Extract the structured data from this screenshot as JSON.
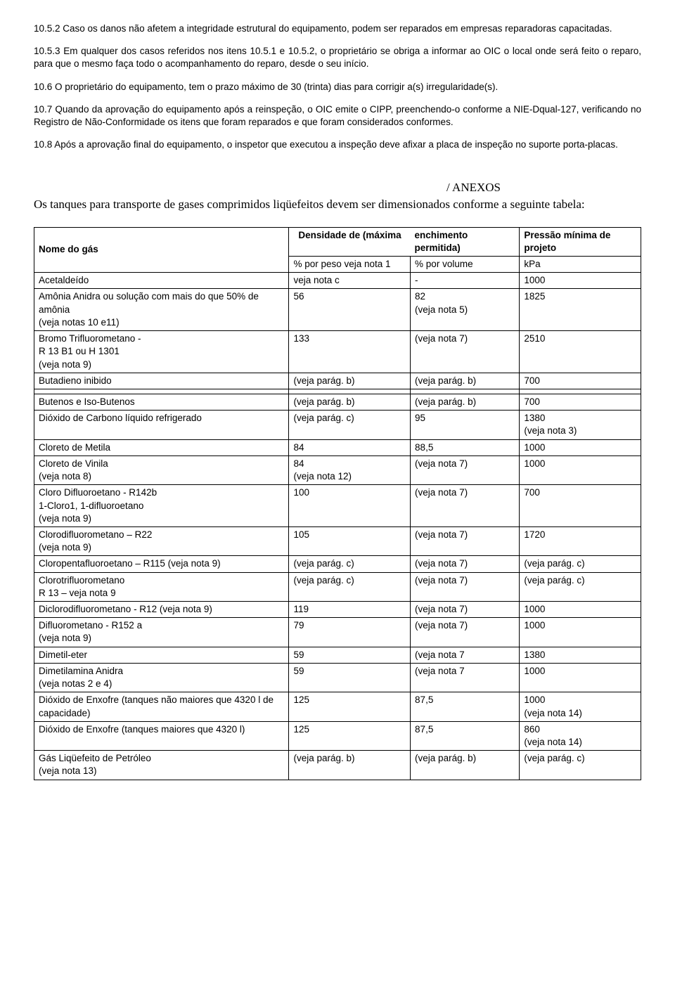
{
  "paragraphs": {
    "p1": "10.5.2 Caso os danos não afetem a integridade estrutural do equipamento, podem ser reparados em empresas reparadoras capacitadas.",
    "p2": "10.5.3 Em qualquer dos casos referidos nos itens 10.5.1 e 10.5.2, o proprietário se obriga a informar ao OIC o local onde será feito o reparo, para que o mesmo faça todo o acompanhamento do reparo, desde o seu início.",
    "p3": "10.6 O proprietário do equipamento, tem o prazo máximo de 30 (trinta) dias para corrigir a(s) irregularidade(s).",
    "p4": "10.7 Quando da aprovação do equipamento após a reinspeção, o OIC emite o CIPP, preenchendo-o conforme a NIE-Dqual-127, verificando no Registro de Não-Conformidade os itens que foram reparados e que foram considerados conformes.",
    "p5": "10.8 Após a aprovação final do equipamento, o inspetor que executou a inspeção deve afixar a placa de inspeção no suporte porta-placas."
  },
  "anexos_title": "/ ANEXOS",
  "intro": "Os tanques para transporte de gases comprimidos liqüefeitos devem ser dimensionados conforme a seguinte tabela:",
  "table": {
    "header": {
      "col1_a": "Nome   do   gás",
      "col2_a": "Densidade de (máxima",
      "col3_a": "enchimento permitida)",
      "col4_a": "Pressão mínima de projeto",
      "col2_b": "% por peso veja nota 1",
      "col3_b": "% por volume",
      "col4_b": "kPa"
    },
    "rows": [
      [
        "Acetaldeído",
        "veja nota c",
        "-",
        "1000"
      ],
      [
        "Amônia Anidra ou solução com mais do que 50% de amônia\n(veja notas 10 e11)",
        "56",
        "82\n(veja nota 5)",
        "1825"
      ],
      [
        "Bromo Trifluorometano -\nR 13 B1 ou H 1301\n(veja nota 9)",
        "133",
        "(veja nota 7)",
        "2510"
      ],
      [
        "Butadieno inibido",
        "(veja parág. b)",
        "(veja parág. b)",
        "700"
      ]
    ],
    "rows2": [
      [
        "Butenos e Iso-Butenos",
        "(veja parág. b)",
        "(veja parág. b)",
        "700"
      ],
      [
        "Dióxido de Carbono líquido refrigerado",
        "(veja parág. c)",
        "95",
        "1380\n(veja nota 3)"
      ],
      [
        "Cloreto de Metila",
        "84",
        "88,5",
        "1000"
      ],
      [
        "Cloreto de Vinila\n(veja nota 8)",
        "84\n(veja nota 12)",
        "(veja nota 7)",
        "1000"
      ],
      [
        "Cloro Difluoroetano -  R142b\n1-Cloro1, 1-difluoroetano\n(veja nota 9)",
        "100",
        "(veja nota 7)",
        "700"
      ],
      [
        "Clorodifluorometano – R22\n(veja nota 9)",
        "105",
        "(veja nota 7)",
        "1720"
      ],
      [
        "Cloropentafluoroetano – R115  (veja nota 9)",
        "(veja parág. c)",
        "(veja nota 7)",
        "(veja parág. c)"
      ],
      [
        "Clorotrifluorometano\nR 13 – veja nota 9",
        "(veja parág. c)",
        "(veja nota 7)",
        "(veja parág. c)"
      ],
      [
        "Diclorodifluorometano - R12 (veja nota 9)",
        "119",
        "(veja nota 7)",
        "1000"
      ],
      [
        "Difluorometano - R152 a\n(veja nota 9)",
        "79",
        "(veja nota 7)",
        "1000"
      ],
      [
        "Dimetil-eter",
        "59",
        "(veja nota 7",
        "1380"
      ],
      [
        "Dimetilamina Anidra\n(veja notas 2 e 4)",
        "59",
        "(veja nota 7",
        "1000"
      ],
      [
        "Dióxido de Enxofre (tanques não maiores que 4320 l de capacidade)",
        "125",
        "87,5",
        "1000\n(veja nota 14)"
      ],
      [
        "Dióxido de Enxofre (tanques maiores que 4320 l)",
        "125",
        "87,5",
        "860\n(veja nota 14)"
      ],
      [
        "Gás Liqüefeito de Petróleo\n(veja nota 13)",
        "(veja parág. b)",
        "(veja parág. b)",
        "(veja parág. c)"
      ]
    ]
  }
}
